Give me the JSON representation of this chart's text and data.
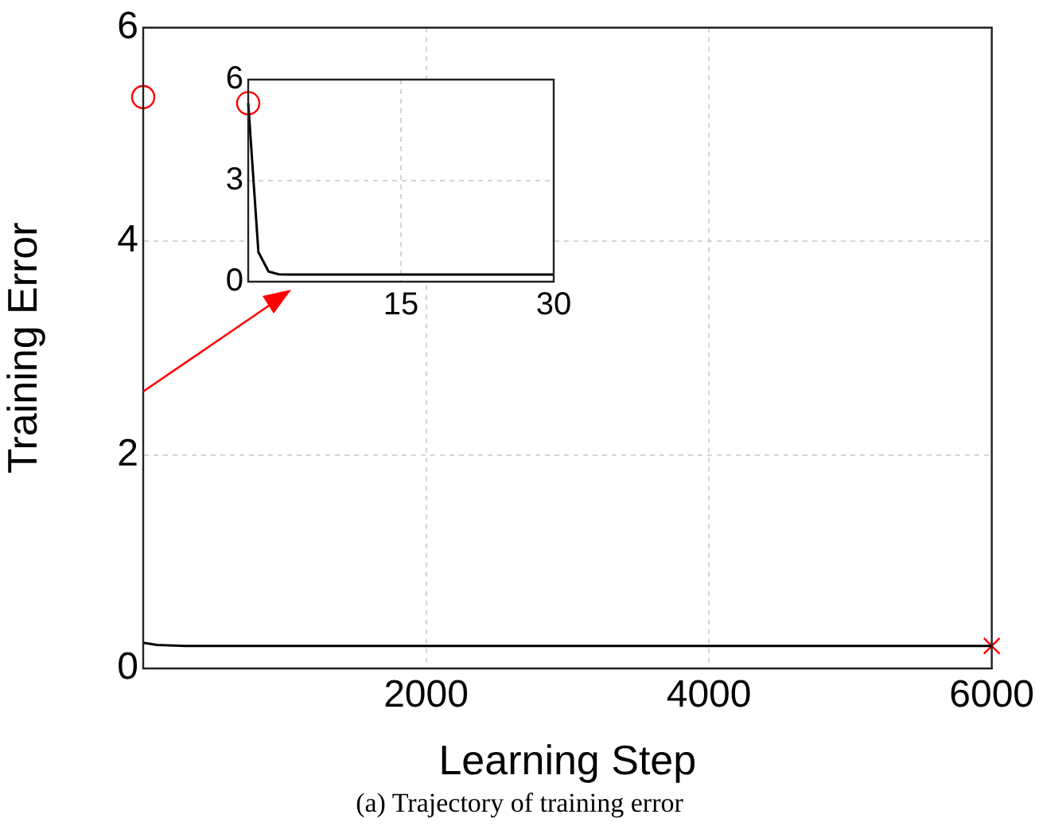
{
  "chart_data": [
    {
      "type": "line",
      "xlabel": "Learning Step",
      "ylabel": "Training Error",
      "grid": true,
      "legend": false,
      "xlim": [
        0,
        6000
      ],
      "ylim": [
        0,
        6
      ],
      "xticks": [
        2000,
        4000,
        6000
      ],
      "yticks": [
        0,
        2,
        4,
        6
      ],
      "annotations": [
        "(a) Trajectory of training error"
      ],
      "series": [
        {
          "color": "#000000",
          "marker": "none",
          "line_style": "solid",
          "x": [
            0,
            100,
            300,
            600,
            1000,
            6000
          ],
          "values": [
            0.24,
            0.22,
            0.21,
            0.21,
            0.21,
            0.21
          ]
        },
        {
          "type": "scatter",
          "color": "#ff0000",
          "marker": "circle",
          "x": [
            0
          ],
          "values": [
            5.35
          ]
        },
        {
          "type": "scatter",
          "color": "#ff0000",
          "marker": "cross",
          "x": [
            6000
          ],
          "values": [
            0.21
          ]
        }
      ]
    },
    {
      "type": "line",
      "grid": true,
      "legend": false,
      "xlim": [
        0,
        30
      ],
      "ylim": [
        0,
        6
      ],
      "xticks": [
        15,
        30
      ],
      "yticks": [
        0,
        3,
        6
      ],
      "series": [
        {
          "color": "#000000",
          "marker": "none",
          "line_style": "solid",
          "x": [
            0,
            1,
            2,
            3,
            4,
            30
          ],
          "values": [
            5.3,
            0.88,
            0.3,
            0.22,
            0.21,
            0.21
          ]
        },
        {
          "type": "scatter",
          "color": "#ff0000",
          "marker": "circle",
          "x": [
            0
          ],
          "values": [
            5.3
          ]
        }
      ]
    }
  ]
}
